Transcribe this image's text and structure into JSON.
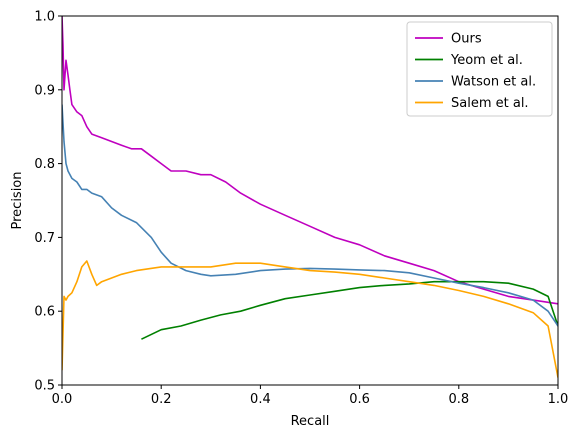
{
  "chart_data": {
    "type": "line",
    "title": "",
    "xlabel": "Recall",
    "ylabel": "Precision",
    "xlim": [
      0,
      1
    ],
    "ylim": [
      0.5,
      1
    ],
    "xticks": [
      "0.0",
      "0.2",
      "0.4",
      "0.6",
      "0.8",
      "1.0"
    ],
    "yticks": [
      "0.5",
      "0.6",
      "0.7",
      "0.8",
      "0.9",
      "1.0"
    ],
    "grid": false,
    "legend_position": "top-right",
    "series": [
      {
        "name": "Ours",
        "color": "#bf00bf",
        "x": [
          0.0,
          0.002,
          0.004,
          0.008,
          0.012,
          0.016,
          0.02,
          0.03,
          0.04,
          0.05,
          0.06,
          0.08,
          0.1,
          0.12,
          0.14,
          0.16,
          0.18,
          0.2,
          0.22,
          0.25,
          0.28,
          0.3,
          0.33,
          0.36,
          0.4,
          0.45,
          0.5,
          0.55,
          0.6,
          0.65,
          0.7,
          0.75,
          0.8,
          0.85,
          0.9,
          0.95,
          1.0
        ],
        "y": [
          1.0,
          0.96,
          0.9,
          0.94,
          0.92,
          0.9,
          0.88,
          0.87,
          0.865,
          0.85,
          0.84,
          0.835,
          0.83,
          0.825,
          0.82,
          0.82,
          0.81,
          0.8,
          0.79,
          0.79,
          0.785,
          0.785,
          0.775,
          0.76,
          0.745,
          0.73,
          0.715,
          0.7,
          0.69,
          0.675,
          0.665,
          0.655,
          0.64,
          0.63,
          0.62,
          0.615,
          0.61
        ]
      },
      {
        "name": "Yeom et al.",
        "color": "#008000",
        "x": [
          0.16,
          0.2,
          0.24,
          0.28,
          0.32,
          0.36,
          0.4,
          0.45,
          0.5,
          0.55,
          0.6,
          0.65,
          0.7,
          0.75,
          0.8,
          0.85,
          0.9,
          0.95,
          0.98,
          1.0
        ],
        "y": [
          0.562,
          0.575,
          0.58,
          0.588,
          0.595,
          0.6,
          0.608,
          0.617,
          0.622,
          0.627,
          0.632,
          0.635,
          0.637,
          0.64,
          0.64,
          0.64,
          0.638,
          0.63,
          0.62,
          0.58
        ]
      },
      {
        "name": "Watson et al.",
        "color": "#4682b4",
        "x": [
          0.0,
          0.004,
          0.008,
          0.012,
          0.02,
          0.03,
          0.04,
          0.05,
          0.06,
          0.08,
          0.1,
          0.12,
          0.15,
          0.18,
          0.2,
          0.22,
          0.25,
          0.28,
          0.3,
          0.35,
          0.4,
          0.45,
          0.5,
          0.55,
          0.6,
          0.65,
          0.7,
          0.75,
          0.8,
          0.85,
          0.9,
          0.95,
          0.98,
          1.0
        ],
        "y": [
          0.88,
          0.83,
          0.8,
          0.79,
          0.78,
          0.775,
          0.765,
          0.765,
          0.76,
          0.755,
          0.74,
          0.73,
          0.72,
          0.7,
          0.68,
          0.665,
          0.655,
          0.65,
          0.648,
          0.65,
          0.655,
          0.657,
          0.658,
          0.657,
          0.656,
          0.655,
          0.652,
          0.645,
          0.638,
          0.632,
          0.625,
          0.615,
          0.6,
          0.58
        ]
      },
      {
        "name": "Salem et al.",
        "color": "#ffa500",
        "x": [
          0.0,
          0.004,
          0.008,
          0.012,
          0.02,
          0.03,
          0.04,
          0.05,
          0.06,
          0.07,
          0.08,
          0.1,
          0.12,
          0.15,
          0.2,
          0.25,
          0.3,
          0.35,
          0.4,
          0.45,
          0.5,
          0.55,
          0.6,
          0.65,
          0.7,
          0.75,
          0.8,
          0.85,
          0.9,
          0.95,
          0.98,
          1.0
        ],
        "y": [
          0.52,
          0.62,
          0.615,
          0.62,
          0.625,
          0.64,
          0.66,
          0.668,
          0.65,
          0.635,
          0.64,
          0.645,
          0.65,
          0.655,
          0.66,
          0.66,
          0.66,
          0.665,
          0.665,
          0.66,
          0.655,
          0.653,
          0.65,
          0.645,
          0.64,
          0.635,
          0.628,
          0.62,
          0.61,
          0.598,
          0.58,
          0.51
        ]
      }
    ]
  }
}
